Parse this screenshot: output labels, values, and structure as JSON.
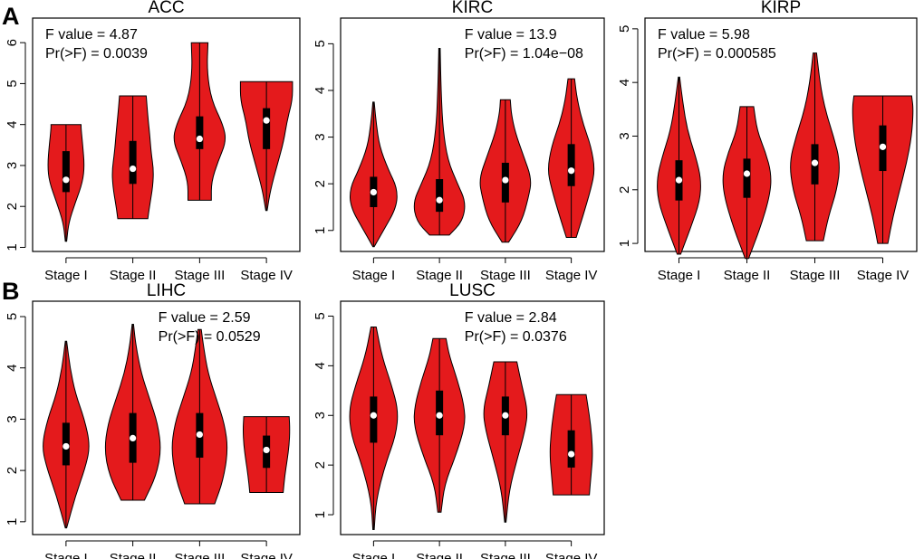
{
  "colors": {
    "violin_fill": "#e41a1c",
    "median_dot": "#ffffff",
    "box": "#000000"
  },
  "panel_labels": [
    "A",
    "B"
  ],
  "chart_data": [
    {
      "type": "violin",
      "title": "ACC",
      "ylim": [
        0.9,
        6.6
      ],
      "yticks": [
        1,
        2,
        3,
        4,
        5,
        6
      ],
      "stats": [
        "F value = 4.87",
        "Pr(>F) = 0.0039"
      ],
      "stats_position": "top-left",
      "categories": [
        "Stage I",
        "Stage II",
        "Stage III",
        "Stage IV"
      ],
      "groups": [
        {
          "min": 1.15,
          "q1": 2.35,
          "median": 2.65,
          "q3": 3.35,
          "max": 4.0,
          "profile": [
            [
              1.15,
              0.02
            ],
            [
              1.6,
              0.08
            ],
            [
              2.1,
              0.28
            ],
            [
              2.6,
              0.5
            ],
            [
              3.0,
              0.55
            ],
            [
              3.5,
              0.5
            ],
            [
              3.9,
              0.45
            ],
            [
              4.0,
              0.45
            ]
          ]
        },
        {
          "min": 1.7,
          "q1": 2.55,
          "median": 2.92,
          "q3": 3.6,
          "max": 4.7,
          "profile": [
            [
              1.7,
              0.45
            ],
            [
              2.0,
              0.5
            ],
            [
              2.5,
              0.6
            ],
            [
              2.9,
              0.62
            ],
            [
              3.3,
              0.55
            ],
            [
              3.8,
              0.5
            ],
            [
              4.2,
              0.45
            ],
            [
              4.7,
              0.4
            ]
          ]
        },
        {
          "min": 2.15,
          "q1": 3.4,
          "median": 3.65,
          "q3": 4.2,
          "max": 6.0,
          "profile": [
            [
              2.15,
              0.35
            ],
            [
              2.6,
              0.35
            ],
            [
              3.1,
              0.55
            ],
            [
              3.6,
              0.8
            ],
            [
              4.0,
              0.7
            ],
            [
              4.6,
              0.35
            ],
            [
              5.3,
              0.22
            ],
            [
              6.0,
              0.25
            ]
          ]
        },
        {
          "min": 1.9,
          "q1": 3.4,
          "median": 4.1,
          "q3": 4.4,
          "max": 5.05,
          "profile": [
            [
              1.9,
              0.02
            ],
            [
              2.4,
              0.12
            ],
            [
              3.0,
              0.32
            ],
            [
              3.6,
              0.52
            ],
            [
              4.1,
              0.62
            ],
            [
              4.6,
              0.78
            ],
            [
              5.05,
              0.78
            ]
          ]
        }
      ]
    },
    {
      "type": "violin",
      "title": "KIRC",
      "ylim": [
        0.55,
        5.55
      ],
      "yticks": [
        1,
        2,
        3,
        4,
        5
      ],
      "stats": [
        "F value = 13.9",
        "Pr(>F) = 1.04e−08"
      ],
      "stats_position": "top-right",
      "categories": [
        "Stage I",
        "Stage II",
        "Stage III",
        "Stage IV"
      ],
      "groups": [
        {
          "min": 0.65,
          "q1": 1.5,
          "median": 1.82,
          "q3": 2.15,
          "max": 3.75,
          "profile": [
            [
              0.65,
              0.02
            ],
            [
              1.0,
              0.3
            ],
            [
              1.5,
              0.7
            ],
            [
              1.9,
              0.72
            ],
            [
              2.3,
              0.45
            ],
            [
              2.8,
              0.18
            ],
            [
              3.3,
              0.08
            ],
            [
              3.75,
              0.02
            ]
          ]
        },
        {
          "min": 0.9,
          "q1": 1.4,
          "median": 1.65,
          "q3": 2.1,
          "max": 4.9,
          "profile": [
            [
              0.9,
              0.3
            ],
            [
              1.2,
              0.7
            ],
            [
              1.6,
              0.8
            ],
            [
              2.0,
              0.55
            ],
            [
              2.5,
              0.25
            ],
            [
              3.2,
              0.1
            ],
            [
              4.0,
              0.05
            ],
            [
              4.9,
              0.02
            ]
          ]
        },
        {
          "min": 0.75,
          "q1": 1.6,
          "median": 2.08,
          "q3": 2.45,
          "max": 3.8,
          "profile": [
            [
              0.75,
              0.1
            ],
            [
              1.2,
              0.5
            ],
            [
              1.7,
              0.7
            ],
            [
              2.1,
              0.8
            ],
            [
              2.6,
              0.55
            ],
            [
              3.1,
              0.3
            ],
            [
              3.5,
              0.18
            ],
            [
              3.8,
              0.15
            ]
          ]
        },
        {
          "min": 0.85,
          "q1": 1.95,
          "median": 2.28,
          "q3": 2.85,
          "max": 4.25,
          "profile": [
            [
              0.85,
              0.15
            ],
            [
              1.3,
              0.35
            ],
            [
              1.9,
              0.6
            ],
            [
              2.3,
              0.72
            ],
            [
              2.8,
              0.6
            ],
            [
              3.3,
              0.35
            ],
            [
              3.8,
              0.18
            ],
            [
              4.25,
              0.1
            ]
          ]
        }
      ]
    },
    {
      "type": "violin",
      "title": "KIRP",
      "ylim": [
        0.85,
        5.2
      ],
      "yticks": [
        1,
        2,
        3,
        4,
        5
      ],
      "stats": [
        "F value = 5.98",
        "Pr(>F) = 0.000585"
      ],
      "stats_position": "top-left",
      "categories": [
        "Stage I",
        "Stage II",
        "Stage III",
        "Stage IV"
      ],
      "groups": [
        {
          "min": 0.8,
          "q1": 1.8,
          "median": 2.18,
          "q3": 2.55,
          "max": 4.1,
          "profile": [
            [
              0.8,
              0.05
            ],
            [
              1.3,
              0.35
            ],
            [
              1.8,
              0.62
            ],
            [
              2.2,
              0.65
            ],
            [
              2.6,
              0.5
            ],
            [
              3.1,
              0.25
            ],
            [
              3.6,
              0.12
            ],
            [
              4.1,
              0.02
            ]
          ]
        },
        {
          "min": 0.72,
          "q1": 1.85,
          "median": 2.3,
          "q3": 2.58,
          "max": 3.55,
          "profile": [
            [
              0.72,
              0.05
            ],
            [
              1.3,
              0.4
            ],
            [
              1.9,
              0.68
            ],
            [
              2.3,
              0.72
            ],
            [
              2.7,
              0.55
            ],
            [
              3.1,
              0.3
            ],
            [
              3.55,
              0.2
            ]
          ]
        },
        {
          "min": 1.05,
          "q1": 2.1,
          "median": 2.5,
          "q3": 2.85,
          "max": 4.55,
          "profile": [
            [
              1.05,
              0.25
            ],
            [
              1.5,
              0.4
            ],
            [
              2.0,
              0.65
            ],
            [
              2.5,
              0.75
            ],
            [
              3.0,
              0.55
            ],
            [
              3.5,
              0.3
            ],
            [
              4.0,
              0.15
            ],
            [
              4.55,
              0.05
            ]
          ]
        },
        {
          "min": 1.0,
          "q1": 2.35,
          "median": 2.8,
          "q3": 3.2,
          "max": 3.75,
          "profile": [
            [
              1.0,
              0.15
            ],
            [
              1.5,
              0.3
            ],
            [
              2.0,
              0.5
            ],
            [
              2.5,
              0.7
            ],
            [
              3.0,
              0.85
            ],
            [
              3.5,
              0.9
            ],
            [
              3.75,
              0.85
            ]
          ]
        }
      ]
    },
    {
      "type": "violin",
      "title": "LIHC",
      "ylim": [
        0.75,
        5.3
      ],
      "yticks": [
        1,
        2,
        3,
        4,
        5
      ],
      "stats": [
        "F value = 2.59",
        "Pr(>F) = 0.0529"
      ],
      "stats_position": "top-right",
      "categories": [
        "Stage I",
        "Stage II",
        "Stage III",
        "Stage IV"
      ],
      "groups": [
        {
          "min": 0.88,
          "q1": 2.1,
          "median": 2.47,
          "q3": 2.93,
          "max": 4.52,
          "profile": [
            [
              0.88,
              0.02
            ],
            [
              1.5,
              0.28
            ],
            [
              2.1,
              0.6
            ],
            [
              2.5,
              0.72
            ],
            [
              3.0,
              0.55
            ],
            [
              3.5,
              0.28
            ],
            [
              4.0,
              0.12
            ],
            [
              4.52,
              0.02
            ]
          ]
        },
        {
          "min": 1.42,
          "q1": 2.15,
          "median": 2.63,
          "q3": 3.12,
          "max": 4.85,
          "profile": [
            [
              1.42,
              0.35
            ],
            [
              1.9,
              0.7
            ],
            [
              2.4,
              0.85
            ],
            [
              2.9,
              0.75
            ],
            [
              3.4,
              0.5
            ],
            [
              3.9,
              0.25
            ],
            [
              4.4,
              0.1
            ],
            [
              4.85,
              0.02
            ]
          ]
        },
        {
          "min": 1.35,
          "q1": 2.25,
          "median": 2.7,
          "q3": 3.12,
          "max": 4.75,
          "profile": [
            [
              1.35,
              0.45
            ],
            [
              1.8,
              0.7
            ],
            [
              2.4,
              0.85
            ],
            [
              2.9,
              0.75
            ],
            [
              3.4,
              0.5
            ],
            [
              3.9,
              0.25
            ],
            [
              4.4,
              0.12
            ],
            [
              4.75,
              0.05
            ]
          ]
        },
        {
          "min": 1.57,
          "q1": 2.05,
          "median": 2.4,
          "q3": 2.68,
          "max": 3.05,
          "profile": [
            [
              1.57,
              0.5
            ],
            [
              1.9,
              0.55
            ],
            [
              2.2,
              0.62
            ],
            [
              2.5,
              0.68
            ],
            [
              2.8,
              0.7
            ],
            [
              3.05,
              0.68
            ]
          ]
        }
      ]
    },
    {
      "type": "violin",
      "title": "LUSC",
      "ylim": [
        0.6,
        5.3
      ],
      "yticks": [
        1,
        2,
        3,
        4,
        5
      ],
      "stats": [
        "F value = 2.84",
        "Pr(>F) = 0.0376"
      ],
      "stats_position": "top-right",
      "categories": [
        "Stage I",
        "Stage II",
        "Stage III",
        "Stage IV"
      ],
      "groups": [
        {
          "min": 0.7,
          "q1": 2.45,
          "median": 3.0,
          "q3": 3.38,
          "max": 4.78,
          "profile": [
            [
              0.7,
              0.02
            ],
            [
              1.3,
              0.08
            ],
            [
              2.0,
              0.35
            ],
            [
              2.6,
              0.68
            ],
            [
              3.1,
              0.75
            ],
            [
              3.6,
              0.55
            ],
            [
              4.2,
              0.25
            ],
            [
              4.78,
              0.08
            ]
          ]
        },
        {
          "min": 1.05,
          "q1": 2.6,
          "median": 3.0,
          "q3": 3.5,
          "max": 4.55,
          "profile": [
            [
              1.05,
              0.05
            ],
            [
              1.6,
              0.15
            ],
            [
              2.2,
              0.5
            ],
            [
              2.8,
              0.78
            ],
            [
              3.2,
              0.75
            ],
            [
              3.7,
              0.55
            ],
            [
              4.2,
              0.3
            ],
            [
              4.55,
              0.2
            ]
          ]
        },
        {
          "min": 0.85,
          "q1": 2.6,
          "median": 3.0,
          "q3": 3.38,
          "max": 4.08,
          "profile": [
            [
              0.85,
              0.02
            ],
            [
              1.5,
              0.12
            ],
            [
              2.1,
              0.35
            ],
            [
              2.7,
              0.6
            ],
            [
              3.1,
              0.68
            ],
            [
              3.6,
              0.5
            ],
            [
              4.08,
              0.35
            ]
          ]
        },
        {
          "min": 1.4,
          "q1": 1.95,
          "median": 2.22,
          "q3": 2.7,
          "max": 3.42,
          "profile": [
            [
              1.4,
              0.55
            ],
            [
              1.8,
              0.6
            ],
            [
              2.2,
              0.65
            ],
            [
              2.6,
              0.62
            ],
            [
              3.0,
              0.55
            ],
            [
              3.42,
              0.45
            ]
          ]
        }
      ]
    }
  ]
}
